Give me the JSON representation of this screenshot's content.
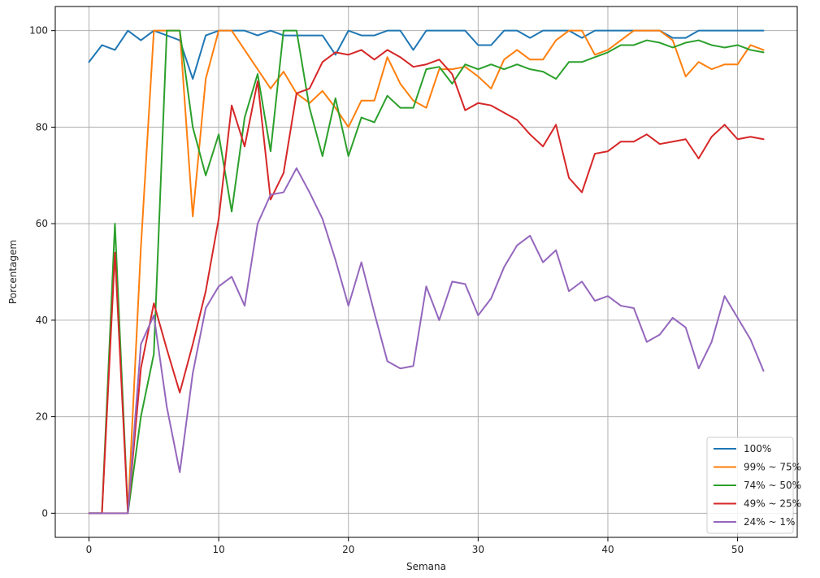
{
  "chart_data": {
    "type": "line",
    "title": "",
    "xlabel": "Semana",
    "ylabel": "Porcentagem",
    "xlim": [
      -2.6,
      54.6
    ],
    "ylim": [
      -5,
      105
    ],
    "xticks": [
      0,
      10,
      20,
      30,
      40,
      50
    ],
    "yticks": [
      0,
      20,
      40,
      60,
      80,
      100
    ],
    "grid": true,
    "legend_position": "lower-right",
    "x": [
      0,
      1,
      2,
      3,
      4,
      5,
      6,
      7,
      8,
      9,
      10,
      11,
      12,
      13,
      14,
      15,
      16,
      17,
      18,
      19,
      20,
      21,
      22,
      23,
      24,
      25,
      26,
      27,
      28,
      29,
      30,
      31,
      32,
      33,
      34,
      35,
      36,
      37,
      38,
      39,
      40,
      41,
      42,
      43,
      44,
      45,
      46,
      47,
      48,
      49,
      50,
      51,
      52
    ],
    "series": [
      {
        "name": "100%",
        "color": "#1f77b4",
        "values": [
          93.5,
          97,
          96,
          100,
          98,
          100,
          99,
          98,
          90,
          99,
          100,
          100,
          100,
          99,
          100,
          99,
          99,
          99,
          99,
          95,
          100,
          99,
          99,
          100,
          100,
          96,
          100,
          100,
          100,
          100,
          97,
          97,
          100,
          100,
          98.5,
          100,
          100,
          100,
          98.5,
          100,
          100,
          100,
          100,
          100,
          100,
          98.5,
          98.5,
          100,
          100,
          100,
          100,
          100,
          100
        ]
      },
      {
        "name": "99% ~ 75%",
        "color": "#ff7f0e",
        "values": [
          0,
          0,
          0,
          0,
          55,
          100,
          100,
          100,
          61.5,
          90,
          100,
          100,
          96,
          92,
          88,
          91.5,
          87,
          85,
          87.5,
          84,
          80,
          85.5,
          85.5,
          94.5,
          89,
          85.5,
          84,
          92,
          92,
          92.5,
          90.5,
          88,
          94,
          96,
          94,
          94,
          98,
          100,
          100,
          95,
          96,
          98,
          100,
          100,
          100,
          98,
          90.5,
          93.5,
          92,
          93,
          93,
          97,
          96
        ]
      },
      {
        "name": "74% ~ 50%",
        "color": "#2ca02c",
        "values": [
          0,
          0,
          60,
          0,
          20,
          33,
          100,
          100,
          80,
          70,
          78.5,
          62.5,
          82,
          91,
          75,
          100,
          100,
          84,
          74,
          86,
          74,
          82,
          81,
          86.5,
          84,
          84,
          92,
          92.5,
          89,
          93,
          92,
          93,
          92,
          93,
          92,
          91.5,
          90,
          93.5,
          93.5,
          94.5,
          95.5,
          97,
          97,
          98,
          97.5,
          96.5,
          97.5,
          98,
          97,
          96.5,
          97,
          96,
          95.5
        ]
      },
      {
        "name": "49% ~ 25%",
        "color": "#d62728",
        "values": [
          0,
          0,
          54,
          0,
          30,
          43.5,
          34,
          25,
          35,
          46,
          61,
          84.5,
          76,
          89.5,
          65,
          70.5,
          87,
          88,
          93.5,
          95.5,
          95,
          96,
          94,
          96,
          94.5,
          92.5,
          93,
          94,
          91,
          83.5,
          85,
          84.5,
          83,
          81.5,
          78.5,
          76,
          80.5,
          69.5,
          66.5,
          74.5,
          75,
          77,
          77,
          78.5,
          76.5,
          77,
          77.5,
          73.5,
          78,
          80.5,
          77.5,
          78,
          77.5
        ]
      },
      {
        "name": "24% ~ 1%",
        "color": "#9467bd",
        "values": [
          0,
          0,
          0,
          0,
          35,
          41,
          22,
          8.5,
          29,
          42.5,
          47,
          49,
          43,
          60,
          66,
          66.5,
          71.5,
          66.5,
          61,
          52.5,
          43,
          52,
          41.5,
          31.5,
          30,
          30.5,
          47,
          40,
          48,
          47.5,
          41,
          44.5,
          51,
          55.5,
          57.5,
          52,
          54.5,
          46,
          48,
          44,
          45,
          43,
          42.5,
          35.5,
          37,
          40.5,
          38.5,
          30,
          35.5,
          45,
          40.5,
          36,
          29.5
        ]
      }
    ]
  }
}
